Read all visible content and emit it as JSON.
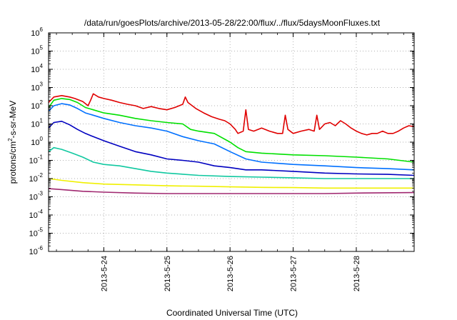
{
  "chart_data": {
    "type": "line",
    "title": "/data/run/goesPlots/archive/2013-05-28/22:00/flux/../flux/5daysMoonFluxes.txt",
    "xlabel": "Coordinated Universal Time (UTC)",
    "ylabel": {
      "prefix": "protons/cm",
      "sup": "2",
      "suffix": "-s-sr-MeV"
    },
    "y_scale": "log",
    "ylim": [
      1e-06,
      1000000.0
    ],
    "y_ticks": [
      {
        "value": 1e-06,
        "base": "10",
        "exp": "-6"
      },
      {
        "value": 1e-05,
        "base": "10",
        "exp": "-5"
      },
      {
        "value": 0.0001,
        "base": "10",
        "exp": "-4"
      },
      {
        "value": 0.001,
        "base": "10",
        "exp": "-3"
      },
      {
        "value": 0.01,
        "base": "10",
        "exp": "-2"
      },
      {
        "value": 0.1,
        "base": "10",
        "exp": "-1"
      },
      {
        "value": 1,
        "base": "10",
        "exp": "0"
      },
      {
        "value": 10,
        "base": "10",
        "exp": "1"
      },
      {
        "value": 100,
        "base": "10",
        "exp": "2"
      },
      {
        "value": 1000,
        "base": "10",
        "exp": "3"
      },
      {
        "value": 10000,
        "base": "10",
        "exp": "4"
      },
      {
        "value": 100000,
        "base": "10",
        "exp": "5"
      },
      {
        "value": 1000000,
        "base": "10",
        "exp": "6"
      }
    ],
    "xlim": [
      "2013-05-23T03:00",
      "2013-05-28T22:00"
    ],
    "x_ticks": [
      {
        "value": "2013-05-24T00:00",
        "label": "2013-5-24"
      },
      {
        "value": "2013-05-25T00:00",
        "label": "2013-5-25"
      },
      {
        "value": "2013-05-26T00:00",
        "label": "2013-5-26"
      },
      {
        "value": "2013-05-27T00:00",
        "label": "2013-5-27"
      },
      {
        "value": "2013-05-28T00:00",
        "label": "2013-5-28"
      }
    ],
    "grid": true,
    "series": [
      {
        "color": "#e00000",
        "points": [
          [
            "2013-05-23T03:00",
            150
          ],
          [
            "2013-05-23T05:00",
            300
          ],
          [
            "2013-05-23T08:00",
            360
          ],
          [
            "2013-05-23T11:00",
            300
          ],
          [
            "2013-05-23T13:00",
            250
          ],
          [
            "2013-05-23T16:00",
            170
          ],
          [
            "2013-05-23T18:00",
            100
          ],
          [
            "2013-05-23T19:00",
            200
          ],
          [
            "2013-05-23T20:00",
            450
          ],
          [
            "2013-05-23T22:00",
            300
          ],
          [
            "2013-05-24T00:00",
            250
          ],
          [
            "2013-05-24T03:00",
            200
          ],
          [
            "2013-05-24T06:00",
            150
          ],
          [
            "2013-05-24T09:00",
            120
          ],
          [
            "2013-05-24T12:00",
            100
          ],
          [
            "2013-05-24T15:00",
            70
          ],
          [
            "2013-05-24T18:00",
            90
          ],
          [
            "2013-05-24T21:00",
            70
          ],
          [
            "2013-05-25T00:00",
            60
          ],
          [
            "2013-05-25T03:00",
            80
          ],
          [
            "2013-05-25T06:00",
            120
          ],
          [
            "2013-05-25T07:00",
            300
          ],
          [
            "2013-05-25T08:00",
            150
          ],
          [
            "2013-05-25T11:00",
            70
          ],
          [
            "2013-05-25T14:00",
            40
          ],
          [
            "2013-05-25T17:00",
            25
          ],
          [
            "2013-05-25T20:00",
            18
          ],
          [
            "2013-05-25T22:00",
            15
          ],
          [
            "2013-05-26T00:00",
            10
          ],
          [
            "2013-05-26T02:00",
            5
          ],
          [
            "2013-05-26T03:00",
            3
          ],
          [
            "2013-05-26T05:00",
            4
          ],
          [
            "2013-05-26T06:00",
            60
          ],
          [
            "2013-05-26T07:00",
            5
          ],
          [
            "2013-05-26T09:00",
            4
          ],
          [
            "2013-05-26T12:00",
            6
          ],
          [
            "2013-05-26T15:00",
            4
          ],
          [
            "2013-05-26T18:00",
            3
          ],
          [
            "2013-05-26T20:00",
            3
          ],
          [
            "2013-05-26T21:00",
            30
          ],
          [
            "2013-05-26T22:00",
            5
          ],
          [
            "2013-05-27T00:00",
            3
          ],
          [
            "2013-05-27T03:00",
            4
          ],
          [
            "2013-05-27T06:00",
            5
          ],
          [
            "2013-05-27T08:00",
            4
          ],
          [
            "2013-05-27T09:00",
            30
          ],
          [
            "2013-05-27T10:00",
            5
          ],
          [
            "2013-05-27T12:00",
            10
          ],
          [
            "2013-05-27T14:00",
            12
          ],
          [
            "2013-05-27T16:00",
            8
          ],
          [
            "2013-05-27T18:00",
            15
          ],
          [
            "2013-05-27T20:00",
            10
          ],
          [
            "2013-05-27T22:00",
            6
          ],
          [
            "2013-05-28T00:00",
            4
          ],
          [
            "2013-05-28T02:00",
            3
          ],
          [
            "2013-05-28T04:00",
            2.5
          ],
          [
            "2013-05-28T06:00",
            3
          ],
          [
            "2013-05-28T08:00",
            3
          ],
          [
            "2013-05-28T10:00",
            4
          ],
          [
            "2013-05-28T12:00",
            3
          ],
          [
            "2013-05-28T14:00",
            3
          ],
          [
            "2013-05-28T16:00",
            4
          ],
          [
            "2013-05-28T18:00",
            6
          ],
          [
            "2013-05-28T20:00",
            8
          ],
          [
            "2013-05-28T22:00",
            7
          ]
        ]
      },
      {
        "color": "#00e000",
        "points": [
          [
            "2013-05-23T03:00",
            80
          ],
          [
            "2013-05-23T05:00",
            200
          ],
          [
            "2013-05-23T08:00",
            250
          ],
          [
            "2013-05-23T11:00",
            220
          ],
          [
            "2013-05-23T14:00",
            150
          ],
          [
            "2013-05-23T17:00",
            80
          ],
          [
            "2013-05-23T20:00",
            60
          ],
          [
            "2013-05-24T00:00",
            40
          ],
          [
            "2013-05-24T06:00",
            30
          ],
          [
            "2013-05-24T12:00",
            20
          ],
          [
            "2013-05-24T18:00",
            15
          ],
          [
            "2013-05-25T00:00",
            12
          ],
          [
            "2013-05-25T06:00",
            10
          ],
          [
            "2013-05-25T09:00",
            5
          ],
          [
            "2013-05-25T12:00",
            4
          ],
          [
            "2013-05-25T18:00",
            3
          ],
          [
            "2013-05-26T00:00",
            1.0
          ],
          [
            "2013-05-26T03:00",
            0.5
          ],
          [
            "2013-05-26T06:00",
            0.3
          ],
          [
            "2013-05-26T12:00",
            0.25
          ],
          [
            "2013-05-27T00:00",
            0.2
          ],
          [
            "2013-05-27T12:00",
            0.18
          ],
          [
            "2013-05-28T00:00",
            0.15
          ],
          [
            "2013-05-28T12:00",
            0.12
          ],
          [
            "2013-05-28T22:00",
            0.08
          ]
        ]
      },
      {
        "color": "#0070ff",
        "points": [
          [
            "2013-05-23T03:00",
            50
          ],
          [
            "2013-05-23T05:00",
            100
          ],
          [
            "2013-05-23T08:00",
            130
          ],
          [
            "2013-05-23T11:00",
            110
          ],
          [
            "2013-05-23T14:00",
            70
          ],
          [
            "2013-05-23T17:00",
            40
          ],
          [
            "2013-05-23T20:00",
            30
          ],
          [
            "2013-05-24T00:00",
            20
          ],
          [
            "2013-05-24T06:00",
            12
          ],
          [
            "2013-05-24T12:00",
            8
          ],
          [
            "2013-05-24T18:00",
            6
          ],
          [
            "2013-05-25T00:00",
            4
          ],
          [
            "2013-05-25T06:00",
            2
          ],
          [
            "2013-05-25T12:00",
            1.2
          ],
          [
            "2013-05-25T18:00",
            0.8
          ],
          [
            "2013-05-26T00:00",
            0.3
          ],
          [
            "2013-05-26T06:00",
            0.12
          ],
          [
            "2013-05-26T12:00",
            0.08
          ],
          [
            "2013-05-27T00:00",
            0.06
          ],
          [
            "2013-05-27T12:00",
            0.05
          ],
          [
            "2013-05-28T00:00",
            0.04
          ],
          [
            "2013-05-28T12:00",
            0.035
          ],
          [
            "2013-05-28T22:00",
            0.03
          ]
        ]
      },
      {
        "color": "#0000c0",
        "points": [
          [
            "2013-05-23T03:00",
            6
          ],
          [
            "2013-05-23T05:00",
            12
          ],
          [
            "2013-05-23T08:00",
            14
          ],
          [
            "2013-05-23T11:00",
            9
          ],
          [
            "2013-05-23T14:00",
            5
          ],
          [
            "2013-05-23T17:00",
            3
          ],
          [
            "2013-05-23T20:00",
            2
          ],
          [
            "2013-05-24T00:00",
            1.2
          ],
          [
            "2013-05-24T06:00",
            0.6
          ],
          [
            "2013-05-24T12:00",
            0.3
          ],
          [
            "2013-05-24T18:00",
            0.2
          ],
          [
            "2013-05-25T00:00",
            0.12
          ],
          [
            "2013-05-25T06:00",
            0.1
          ],
          [
            "2013-05-25T12:00",
            0.08
          ],
          [
            "2013-05-25T18:00",
            0.05
          ],
          [
            "2013-05-26T00:00",
            0.04
          ],
          [
            "2013-05-26T06:00",
            0.03
          ],
          [
            "2013-05-26T12:00",
            0.03
          ],
          [
            "2013-05-27T00:00",
            0.025
          ],
          [
            "2013-05-27T12:00",
            0.02
          ],
          [
            "2013-05-28T00:00",
            0.018
          ],
          [
            "2013-05-28T12:00",
            0.017
          ],
          [
            "2013-05-28T22:00",
            0.015
          ]
        ]
      },
      {
        "color": "#10c8a0",
        "points": [
          [
            "2013-05-23T03:00",
            0.3
          ],
          [
            "2013-05-23T05:00",
            0.5
          ],
          [
            "2013-05-23T08:00",
            0.4
          ],
          [
            "2013-05-23T12:00",
            0.25
          ],
          [
            "2013-05-23T16:00",
            0.15
          ],
          [
            "2013-05-23T20:00",
            0.08
          ],
          [
            "2013-05-24T00:00",
            0.06
          ],
          [
            "2013-05-24T06:00",
            0.05
          ],
          [
            "2013-05-24T12:00",
            0.035
          ],
          [
            "2013-05-24T18:00",
            0.025
          ],
          [
            "2013-05-25T00:00",
            0.02
          ],
          [
            "2013-05-25T12:00",
            0.015
          ],
          [
            "2013-05-26T00:00",
            0.013
          ],
          [
            "2013-05-26T12:00",
            0.012
          ],
          [
            "2013-05-27T00:00",
            0.011
          ],
          [
            "2013-05-27T12:00",
            0.01
          ],
          [
            "2013-05-28T00:00",
            0.01
          ],
          [
            "2013-05-28T22:00",
            0.01
          ]
        ]
      },
      {
        "color": "#f0f000",
        "points": [
          [
            "2013-05-23T03:00",
            0.01
          ],
          [
            "2013-05-23T08:00",
            0.008
          ],
          [
            "2013-05-23T16:00",
            0.006
          ],
          [
            "2013-05-24T00:00",
            0.005
          ],
          [
            "2013-05-24T12:00",
            0.0045
          ],
          [
            "2013-05-25T00:00",
            0.004
          ],
          [
            "2013-05-25T12:00",
            0.0038
          ],
          [
            "2013-05-26T00:00",
            0.0035
          ],
          [
            "2013-05-26T12:00",
            0.0033
          ],
          [
            "2013-05-27T00:00",
            0.0032
          ],
          [
            "2013-05-27T12:00",
            0.003
          ],
          [
            "2013-05-28T00:00",
            0.003
          ],
          [
            "2013-05-28T22:00",
            0.003
          ]
        ]
      },
      {
        "color": "#a02870",
        "points": [
          [
            "2013-05-23T03:00",
            0.0028
          ],
          [
            "2013-05-23T08:00",
            0.0025
          ],
          [
            "2013-05-23T16:00",
            0.002
          ],
          [
            "2013-05-24T00:00",
            0.0018
          ],
          [
            "2013-05-24T12:00",
            0.0016
          ],
          [
            "2013-05-25T00:00",
            0.0015
          ],
          [
            "2013-05-25T12:00",
            0.0015
          ],
          [
            "2013-05-26T00:00",
            0.0015
          ],
          [
            "2013-05-26T12:00",
            0.0015
          ],
          [
            "2013-05-27T00:00",
            0.0015
          ],
          [
            "2013-05-27T12:00",
            0.0015
          ],
          [
            "2013-05-28T00:00",
            0.0016
          ],
          [
            "2013-05-28T22:00",
            0.0017
          ]
        ]
      }
    ]
  }
}
